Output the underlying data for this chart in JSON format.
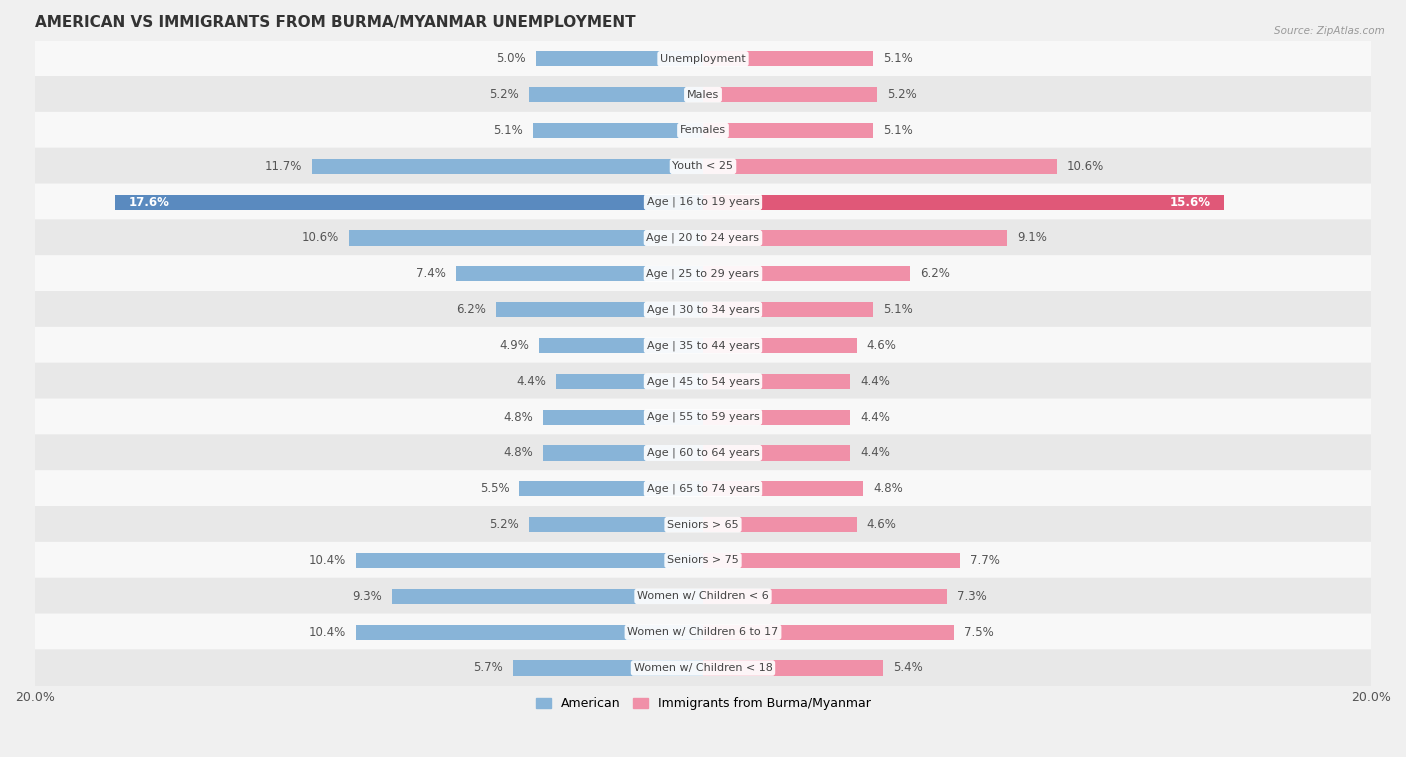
{
  "title": "AMERICAN VS IMMIGRANTS FROM BURMA/MYANMAR UNEMPLOYMENT",
  "source": "Source: ZipAtlas.com",
  "categories": [
    "Unemployment",
    "Males",
    "Females",
    "Youth < 25",
    "Age | 16 to 19 years",
    "Age | 20 to 24 years",
    "Age | 25 to 29 years",
    "Age | 30 to 34 years",
    "Age | 35 to 44 years",
    "Age | 45 to 54 years",
    "Age | 55 to 59 years",
    "Age | 60 to 64 years",
    "Age | 65 to 74 years",
    "Seniors > 65",
    "Seniors > 75",
    "Women w/ Children < 6",
    "Women w/ Children 6 to 17",
    "Women w/ Children < 18"
  ],
  "american_values": [
    5.0,
    5.2,
    5.1,
    11.7,
    17.6,
    10.6,
    7.4,
    6.2,
    4.9,
    4.4,
    4.8,
    4.8,
    5.5,
    5.2,
    10.4,
    9.3,
    10.4,
    5.7
  ],
  "immigrant_values": [
    5.1,
    5.2,
    5.1,
    10.6,
    15.6,
    9.1,
    6.2,
    5.1,
    4.6,
    4.4,
    4.4,
    4.4,
    4.8,
    4.6,
    7.7,
    7.3,
    7.5,
    5.4
  ],
  "american_color": "#88b4d8",
  "immigrant_color": "#f090a8",
  "american_highlight_color": "#5a8abf",
  "immigrant_highlight_color": "#e05878",
  "highlight_row": 4,
  "axis_max": 20.0,
  "bar_height": 0.42,
  "bg_color": "#f0f0f0",
  "row_color_even": "#f8f8f8",
  "row_color_odd": "#e8e8e8",
  "label_fontsize": 8.0,
  "title_fontsize": 11,
  "legend_fontsize": 9,
  "value_fontsize": 8.5,
  "highlight_label_color": "#ffffff"
}
